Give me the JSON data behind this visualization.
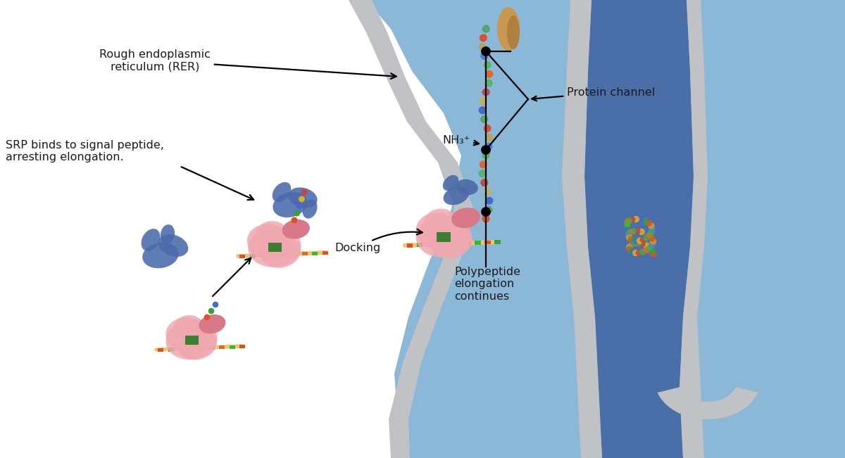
{
  "bg_color": "#ffffff",
  "rer_light": "#8cb8d8",
  "rer_dark": "#4a6ea8",
  "gray_mem": "#c0c2c5",
  "rib_large": "#f0a8b0",
  "rib_small": "#d87888",
  "srp_blue": "#4a6aaa",
  "mrna_tan": "#e8c870",
  "green_site": "#3a8030",
  "text_color": "#1a1a1a",
  "prot_ch_color": "#c8a060",
  "pep_colors": [
    "#e05028",
    "#38a038",
    "#4868d0",
    "#d8b020",
    "#c04848",
    "#40b040",
    "#e06830",
    "#38b838"
  ],
  "dot_colors": [
    "#e05028",
    "#38a038",
    "#4868d0",
    "#d8b020",
    "#c04848",
    "#40b040",
    "#e06830",
    "#38b838",
    "#5080d8",
    "#c8a020"
  ],
  "label_RER": "Rough endoplasmic\nreticulum (RER)",
  "label_SRP": "SRP binds to signal peptide,\narresting elongation.",
  "label_Docking": "Docking",
  "label_NH3": "NH₃⁺",
  "label_ProteinChannel": "Protein channel",
  "label_Polypeptide": "Polypeptide\nelongation\ncontinues"
}
